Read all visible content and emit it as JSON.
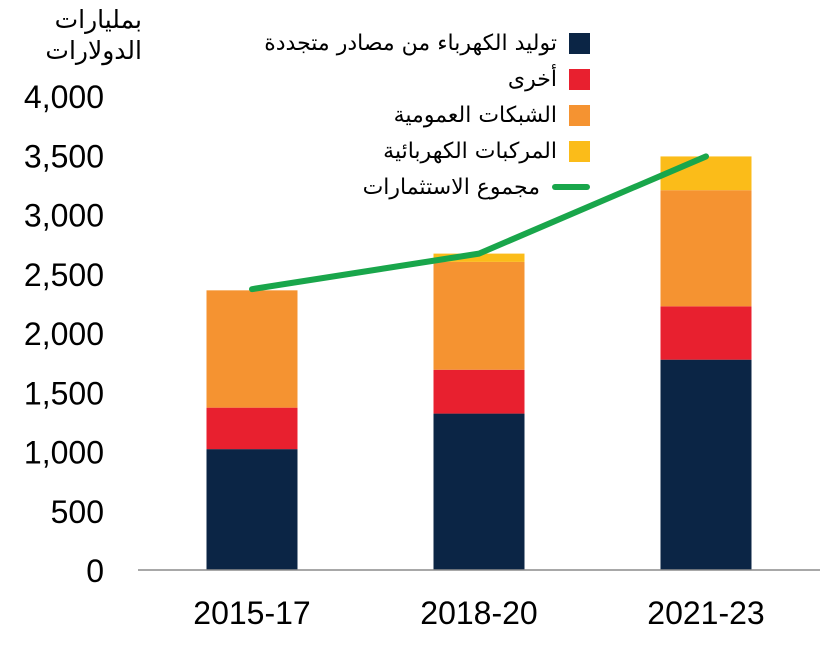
{
  "chart_data": {
    "type": "bar",
    "stacked": true,
    "title": "",
    "ylabel": "بمليارات الدولارات",
    "xlabel": "",
    "ylim": [
      0,
      4000
    ],
    "yticks": [
      0,
      500,
      1000,
      1500,
      2000,
      2500,
      3000,
      3500,
      4000
    ],
    "ytick_labels": [
      "0",
      "500",
      "1,000",
      "1,500",
      "2,000",
      "2,500",
      "3,000",
      "3,500",
      "4,000"
    ],
    "categories": [
      "2015-17",
      "2018-20",
      "2021-23"
    ],
    "series": [
      {
        "name": "توليد الكهرباء من مصادر متجددة",
        "color": "#0b2545",
        "values": [
          1020,
          1320,
          1775
        ]
      },
      {
        "name": "أخرى",
        "color": "#e8202f",
        "values": [
          350,
          370,
          450
        ]
      },
      {
        "name": "الشبكات العمومية",
        "color": "#f59331",
        "values": [
          990,
          910,
          980
        ]
      },
      {
        "name": "المركبات الكهربائية",
        "color": "#fbbc19",
        "values": [
          0,
          70,
          285
        ]
      }
    ],
    "line_series": {
      "name": "مجموع الاستثمارات",
      "color": "#19a64b",
      "values": [
        2370,
        2670,
        3490
      ]
    },
    "legend_position": "top-left"
  }
}
